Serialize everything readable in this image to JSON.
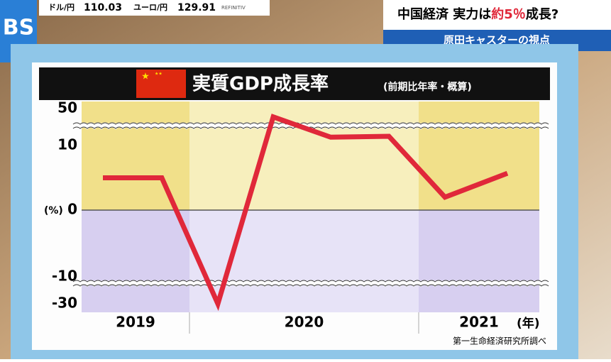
{
  "ticker": {
    "usd_label": "ドル/円",
    "usd_value": "110.03",
    "eur_label": "ユーロ/円",
    "eur_value": "129.91",
    "source": "REFINITIV"
  },
  "headline": {
    "parts": [
      "中国経済 実力は",
      "約5％",
      "成長?"
    ],
    "subtitle": "原田キャスターの視点"
  },
  "chart_data": {
    "type": "line",
    "title": "実質GDP成長率",
    "subtitle": "(前期比年率・概算)",
    "y_unit": "(%)",
    "x_unit": "(年)",
    "note": "第一生命経済研究所調べ",
    "categories": [
      null,
      null,
      null,
      null,
      null,
      null,
      null,
      null
    ],
    "x_groups": [
      "2019",
      "2020",
      "2021"
    ],
    "series": [
      {
        "name": "実質GDP成長率",
        "color": "#e0283a",
        "values": [
          5,
          5,
          -30,
          41,
          19,
          20,
          2,
          5.7
        ]
      }
    ],
    "ylim": [
      -30,
      50
    ],
    "yticks": [
      -30,
      -10,
      0,
      10,
      50
    ],
    "grid": false
  }
}
